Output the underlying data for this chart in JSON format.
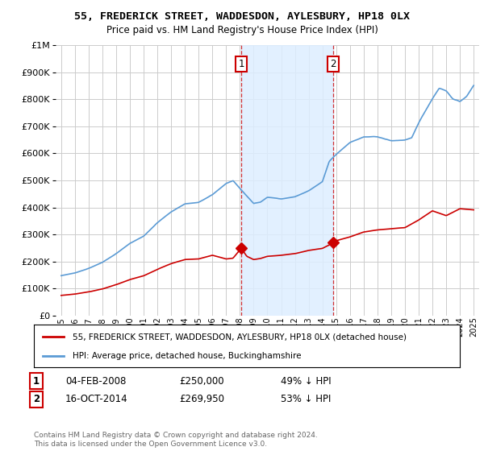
{
  "title": "55, FREDERICK STREET, WADDESDON, AYLESBURY, HP18 0LX",
  "subtitle": "Price paid vs. HM Land Registry's House Price Index (HPI)",
  "legend_line1": "55, FREDERICK STREET, WADDESDON, AYLESBURY, HP18 0LX (detached house)",
  "legend_line2": "HPI: Average price, detached house, Buckinghamshire",
  "footnote": "Contains HM Land Registry data © Crown copyright and database right 2024.\nThis data is licensed under the Open Government Licence v3.0.",
  "sale1_label": "1",
  "sale1_date": "04-FEB-2008",
  "sale1_price": "£250,000",
  "sale1_hpi": "49% ↓ HPI",
  "sale1_year": 2008.1,
  "sale1_value": 250000,
  "sale2_label": "2",
  "sale2_date": "16-OCT-2014",
  "sale2_price": "£269,950",
  "sale2_hpi": "53% ↓ HPI",
  "sale2_year": 2014.79,
  "sale2_value": 269950,
  "hpi_color": "#5b9bd5",
  "sale_color": "#cc0000",
  "shade_color": "#ddeeff",
  "xlim_left": 1994.6,
  "xlim_right": 2025.4,
  "ylim_top": 1000000,
  "ylim_bottom": 0,
  "background_color": "#ffffff",
  "grid_color": "#cccccc"
}
